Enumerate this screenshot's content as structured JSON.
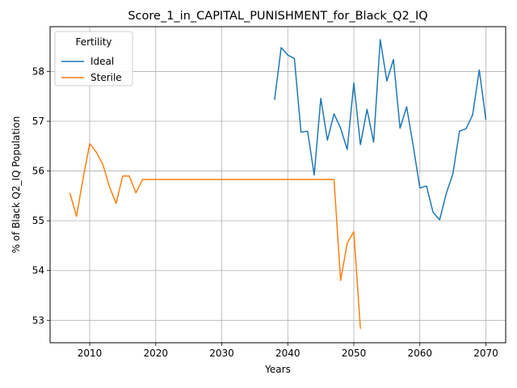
{
  "chart_data": {
    "type": "line",
    "title": "Score_1_in_CAPITAL_PUNISHMENT_for_Black_Q2_IQ",
    "xlabel": "Years",
    "ylabel": "% of Black Q2_IQ Population",
    "xlim": [
      2004,
      2073
    ],
    "ylim": [
      52.55,
      58.9
    ],
    "xticks": [
      2010,
      2020,
      2030,
      2040,
      2050,
      2060,
      2070
    ],
    "yticks": [
      53,
      54,
      55,
      56,
      57,
      58
    ],
    "grid": true,
    "legend": {
      "title": "Fertility",
      "placement": "top-left"
    },
    "series": [
      {
        "name": "Ideal",
        "color": "#1f77b4",
        "x": [
          2038,
          2039,
          2040,
          2041,
          2042,
          2043,
          2044,
          2045,
          2046,
          2047,
          2048,
          2049,
          2050,
          2051,
          2052,
          2053,
          2054,
          2055,
          2056,
          2057,
          2058,
          2059,
          2060,
          2061,
          2062,
          2063,
          2064,
          2065,
          2066,
          2067,
          2068,
          2069,
          2070
        ],
        "y": [
          57.43,
          58.48,
          58.33,
          58.26,
          56.78,
          56.8,
          55.92,
          57.46,
          56.62,
          57.15,
          56.86,
          56.43,
          57.77,
          56.53,
          57.24,
          56.58,
          58.64,
          57.81,
          58.24,
          56.86,
          57.29,
          56.5,
          55.66,
          55.7,
          55.17,
          55.02,
          55.55,
          55.94,
          56.8,
          56.85,
          57.13,
          58.03,
          57.03
        ]
      },
      {
        "name": "Sterile",
        "color": "#ff7f0e",
        "x": [
          2007,
          2008,
          2009,
          2010,
          2011,
          2012,
          2013,
          2014,
          2015,
          2016,
          2017,
          2018,
          2019,
          2020,
          2021,
          2022,
          2023,
          2024,
          2025,
          2026,
          2027,
          2028,
          2029,
          2030,
          2031,
          2032,
          2033,
          2034,
          2035,
          2036,
          2037,
          2038,
          2039,
          2040,
          2041,
          2042,
          2043,
          2044,
          2045,
          2046,
          2047,
          2048,
          2049,
          2050,
          2051
        ],
        "y": [
          55.56,
          55.09,
          55.85,
          56.55,
          56.38,
          56.13,
          55.68,
          55.35,
          55.9,
          55.9,
          55.56,
          55.83,
          55.83,
          55.83,
          55.83,
          55.83,
          55.83,
          55.83,
          55.83,
          55.83,
          55.83,
          55.83,
          55.83,
          55.83,
          55.83,
          55.83,
          55.83,
          55.83,
          55.83,
          55.83,
          55.83,
          55.83,
          55.83,
          55.83,
          55.83,
          55.83,
          55.83,
          55.83,
          55.83,
          55.83,
          55.83,
          53.8,
          54.55,
          54.78,
          52.83
        ]
      }
    ]
  }
}
